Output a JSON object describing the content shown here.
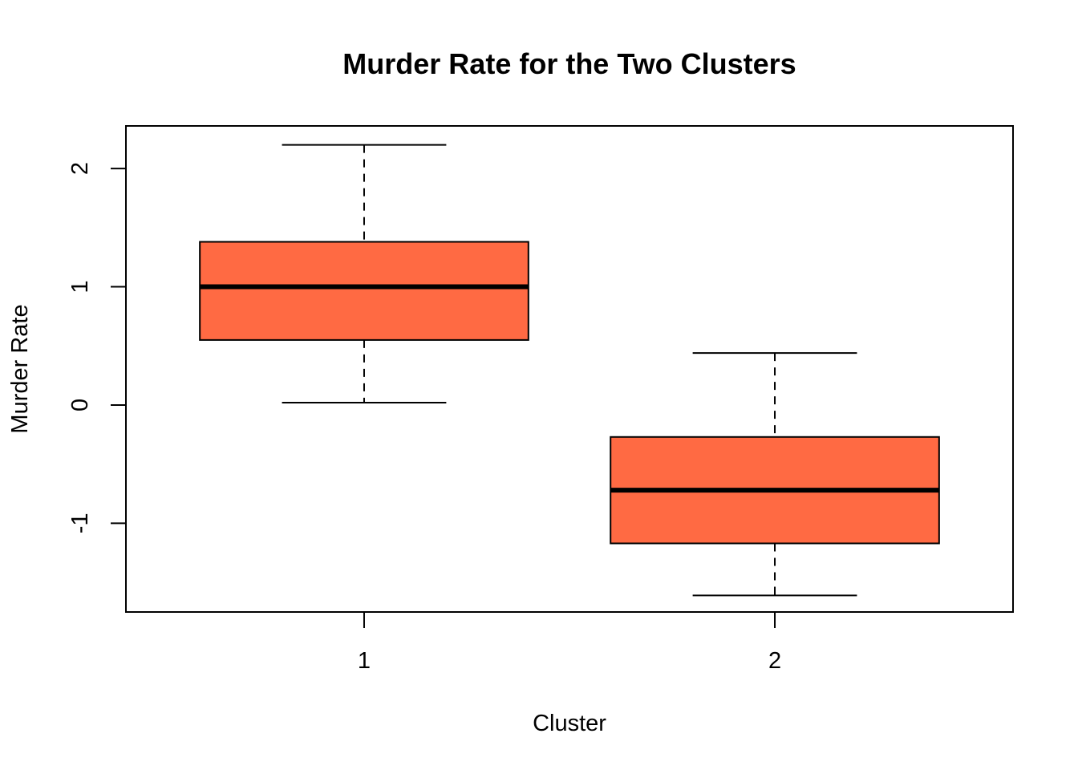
{
  "chart_data": {
    "type": "boxplot",
    "title": "Murder Rate for the Two Clusters",
    "xlabel": "Cluster",
    "ylabel": "Murder Rate",
    "categories": [
      "1",
      "2"
    ],
    "boxes": [
      {
        "category": "1",
        "whisker_low": 0.02,
        "q1": 0.55,
        "median": 1.0,
        "q3": 1.38,
        "whisker_high": 2.2
      },
      {
        "category": "2",
        "whisker_low": -1.61,
        "q1": -1.17,
        "median": -0.72,
        "q3": -0.27,
        "whisker_high": 0.44
      }
    ],
    "ylim": [
      -1.75,
      2.36
    ],
    "yticks": [
      -1,
      0,
      1,
      2
    ],
    "ytick_labels": [
      "-1",
      "0",
      "1",
      "2"
    ],
    "grid": false,
    "box_color": "#FF6A43",
    "line_color": "#000000"
  }
}
